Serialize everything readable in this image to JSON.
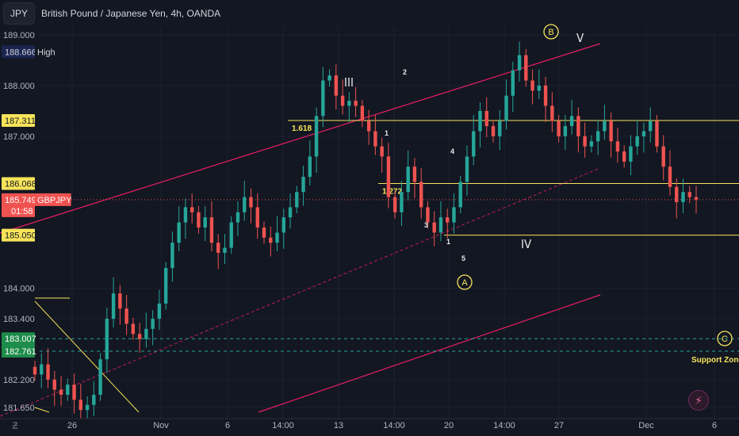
{
  "header": {
    "currency_button": "JPY",
    "title": "British Pound / Japanese Yen, 4h, OANDA"
  },
  "colors": {
    "background": "#131722",
    "up": "#26a69a",
    "down": "#ef5350",
    "channel": "#e91e63",
    "fib": "#f7e35a",
    "text": "#d1d4dc",
    "dashed_green": "#26a69a"
  },
  "icons": [
    "bolt-icon",
    "tradingview-logo-icon"
  ],
  "chart_data": {
    "type": "candlestick",
    "symbol": "GBPJPY",
    "title": "British Pound / Japanese Yen, 4h, OANDA",
    "y_axis": {
      "ticks": [
        "189.000",
        "188.000",
        "187.000",
        "184.000",
        "183.400",
        "182.200",
        "181.650"
      ],
      "range": [
        181.45,
        189.1
      ]
    },
    "x_axis": {
      "ticks": [
        "26",
        "Nov",
        "6",
        "14:00",
        "13",
        "14:00",
        "20",
        "14:00",
        "27",
        "Dec",
        "6"
      ]
    },
    "price_tags": [
      {
        "value": "188.666",
        "label": "High",
        "role": "high"
      },
      {
        "value": "187.311",
        "label": "",
        "role": "fib"
      },
      {
        "value": "186.068",
        "label": "",
        "role": "fib"
      },
      {
        "value": "185.749",
        "label": "GBPJPY",
        "role": "last",
        "countdown": "01:58"
      },
      {
        "value": "185.050",
        "label": "",
        "role": "fib"
      },
      {
        "value": "183.007",
        "label": "",
        "role": "support"
      },
      {
        "value": "182.761",
        "label": "",
        "role": "support"
      }
    ],
    "horizontal_levels": [
      {
        "price": 187.311,
        "label": "1.618"
      },
      {
        "price": 186.068,
        "label": "1.272"
      },
      {
        "price": 185.05,
        "label": ""
      },
      {
        "price": 183.007,
        "label": ""
      },
      {
        "price": 182.761,
        "label": ""
      }
    ],
    "wave_labels": [
      "III",
      "1",
      "2",
      "1",
      "3",
      "4",
      "5",
      "IV",
      "A",
      "B",
      "V",
      "C"
    ],
    "annotations": [
      "Support Zone"
    ],
    "closes": [
      182.3,
      182.5,
      182.2,
      182.0,
      181.9,
      182.1,
      181.8,
      181.6,
      181.7,
      181.9,
      182.6,
      183.4,
      183.9,
      183.6,
      183.3,
      183.1,
      183.0,
      183.2,
      183.4,
      183.7,
      184.4,
      184.9,
      185.3,
      185.6,
      185.5,
      185.2,
      185.4,
      184.9,
      184.7,
      184.8,
      185.3,
      185.5,
      185.8,
      185.6,
      185.2,
      185.0,
      184.9,
      185.1,
      185.4,
      185.6,
      185.9,
      186.2,
      186.6,
      187.4,
      188.1,
      188.2,
      187.8,
      187.6,
      187.7,
      187.6,
      187.3,
      187.1,
      186.8,
      186.6,
      185.8,
      185.5,
      185.9,
      186.4,
      186.1,
      185.6,
      185.3,
      185.1,
      185.4,
      185.3,
      185.6,
      186.1,
      186.6,
      187.1,
      187.5,
      187.2,
      187.0,
      187.3,
      187.8,
      188.3,
      188.6,
      188.1,
      187.9,
      188.0,
      187.6,
      187.3,
      187.0,
      187.2,
      187.4,
      187.0,
      186.8,
      186.9,
      187.1,
      187.3,
      186.9,
      186.7,
      186.5,
      186.8,
      187.0,
      187.1,
      187.3,
      186.8,
      186.4,
      186.0,
      185.7,
      185.9,
      185.8,
      185.75
    ]
  }
}
